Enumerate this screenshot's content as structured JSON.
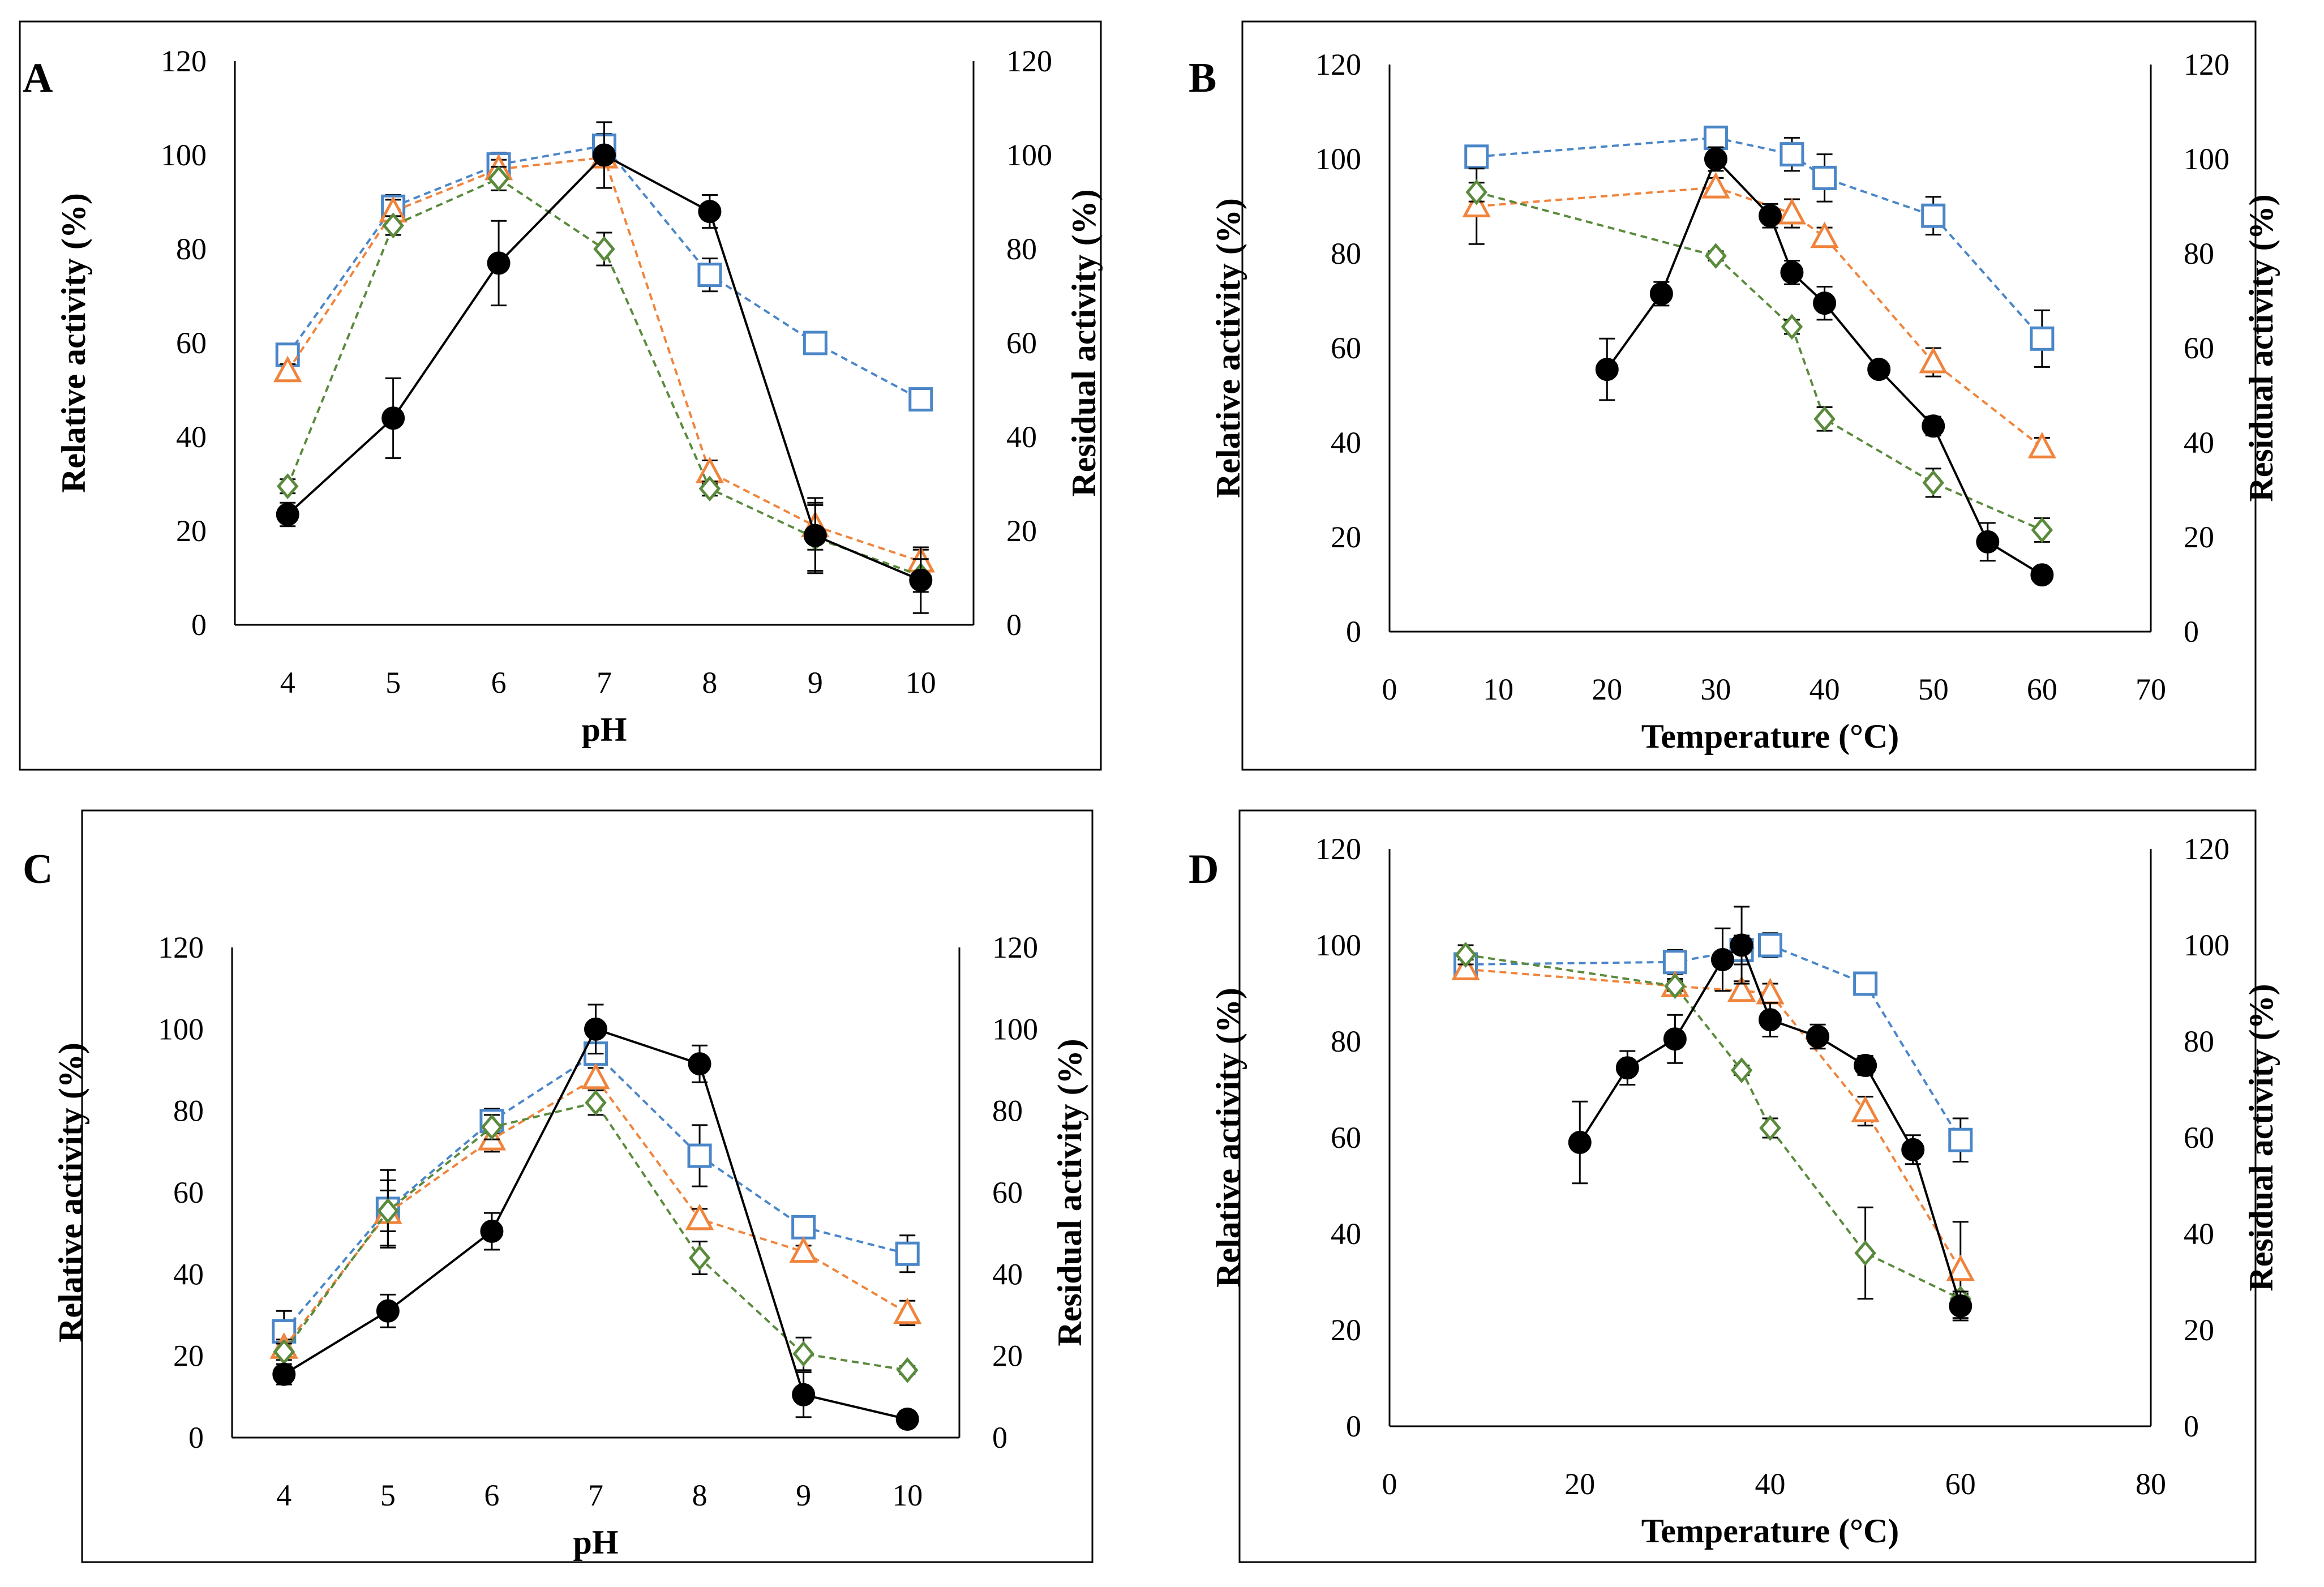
{
  "figure": {
    "marker_colors": {
      "filled_circle": "#000000",
      "square": "#4a86c8",
      "triangle": "#f0843c",
      "diamond": "#5a8a3c"
    }
  },
  "chart_data": [
    {
      "panel": "A",
      "type": "line",
      "xlabel": "pH",
      "ylabel": "Relative activity (%)",
      "y2label": "Residual activity (%)",
      "xlim": [
        3.5,
        10.5
      ],
      "ylim": [
        0,
        120
      ],
      "y2lim": [
        0,
        120
      ],
      "x_ticks": [
        4,
        5,
        6,
        7,
        8,
        9,
        10
      ],
      "y_ticks": [
        0,
        20,
        40,
        60,
        80,
        100,
        120
      ],
      "y2_ticks": [
        0,
        20,
        40,
        60,
        80,
        100,
        120
      ],
      "series": [
        {
          "name": "Relative activity",
          "marker": "filled_circle",
          "color": "#000000",
          "style": "solid",
          "axis": "left",
          "x": [
            4,
            5,
            6,
            7,
            8,
            9,
            10
          ],
          "y": [
            23.5,
            44,
            77,
            100,
            88,
            19,
            9.5
          ],
          "err": [
            2.5,
            8.5,
            9,
            7,
            3.5,
            8,
            7
          ]
        },
        {
          "name": "Residual activity (square)",
          "marker": "square",
          "color": "#4a86c8",
          "style": "dashed",
          "axis": "right",
          "x": [
            4,
            5,
            6,
            7,
            8,
            9,
            10
          ],
          "y": [
            57.5,
            89,
            98,
            102,
            74.5,
            60,
            48
          ],
          "err": [
            1.5,
            2.5,
            2.5,
            2.5,
            3.5,
            1,
            1
          ]
        },
        {
          "name": "Residual activity (triangle)",
          "marker": "triangle",
          "color": "#f0843c",
          "style": "dashed",
          "axis": "right",
          "x": [
            4,
            5,
            6,
            7,
            8,
            9,
            10
          ],
          "y": [
            54,
            88,
            97,
            99.5,
            32.5,
            21,
            13.5
          ],
          "err": [
            1.5,
            2.5,
            2,
            2,
            2.5,
            5,
            2.5
          ]
        },
        {
          "name": "Residual activity (diamond)",
          "marker": "diamond",
          "color": "#5a8a3c",
          "style": "dashed",
          "axis": "right",
          "x": [
            4,
            5,
            6,
            7,
            8,
            9,
            10
          ],
          "y": [
            29.5,
            85,
            95,
            80,
            29,
            18.5,
            10.5
          ],
          "err": [
            1.5,
            2,
            2.5,
            3.5,
            1.5,
            7,
            3.5
          ]
        }
      ]
    },
    {
      "panel": "B",
      "type": "line",
      "xlabel": "Temperature (°C)",
      "ylabel": "Relative activity (%)",
      "y2label": "Residual activity (%)",
      "xlim": [
        0,
        70
      ],
      "ylim": [
        0,
        120
      ],
      "y2lim": [
        0,
        120
      ],
      "x_ticks": [
        0,
        10,
        20,
        30,
        40,
        50,
        60,
        70
      ],
      "y_ticks": [
        0,
        20,
        40,
        60,
        80,
        100,
        120
      ],
      "y2_ticks": [
        0,
        20,
        40,
        60,
        80,
        100,
        120
      ],
      "series": [
        {
          "name": "Relative activity",
          "marker": "filled_circle",
          "color": "#000000",
          "style": "solid",
          "axis": "left",
          "x": [
            20,
            25,
            30,
            35,
            37,
            40,
            45,
            50,
            55,
            60
          ],
          "y": [
            55.5,
            71.5,
            100,
            88,
            76,
            69.5,
            55.5,
            43.5,
            19,
            12
          ],
          "err": [
            6.5,
            2.5,
            2.5,
            2.5,
            2.5,
            3.5,
            1.5,
            2,
            4,
            1.5
          ]
        },
        {
          "name": "Residual activity (square)",
          "marker": "square",
          "color": "#4a86c8",
          "style": "dashed",
          "axis": "right",
          "x": [
            8,
            30,
            37,
            40,
            50,
            60
          ],
          "y": [
            100.5,
            104.5,
            101,
            96,
            88,
            62
          ],
          "err": [
            2,
            2,
            3.5,
            5,
            4,
            6
          ]
        },
        {
          "name": "Residual activity (triangle)",
          "marker": "triangle",
          "color": "#f0843c",
          "style": "dashed",
          "axis": "right",
          "x": [
            8,
            30,
            37,
            40,
            50,
            60
          ],
          "y": [
            90,
            94,
            88.5,
            83.5,
            57,
            39
          ],
          "err": [
            8,
            2,
            3,
            2,
            3,
            2
          ]
        },
        {
          "name": "Residual activity (diamond)",
          "marker": "diamond",
          "color": "#5a8a3c",
          "style": "dashed",
          "axis": "right",
          "x": [
            8,
            30,
            37,
            40,
            50,
            60
          ],
          "y": [
            93,
            79.5,
            64.5,
            45,
            31.5,
            21.5
          ],
          "err": [
            2,
            1,
            1.5,
            2.5,
            3,
            2.5
          ]
        }
      ]
    },
    {
      "panel": "C",
      "type": "line",
      "xlabel": "pH",
      "ylabel": "Relative activity (%)",
      "y2label": "Residual activity (%)",
      "xlim": [
        3.5,
        10.5
      ],
      "ylim": [
        0,
        120
      ],
      "y2lim": [
        0,
        120
      ],
      "x_ticks": [
        4,
        5,
        6,
        7,
        8,
        9,
        10
      ],
      "y_ticks": [
        0,
        20,
        40,
        60,
        80,
        100,
        120
      ],
      "y2_ticks": [
        0,
        20,
        40,
        60,
        80,
        100,
        120
      ],
      "series": [
        {
          "name": "Relative activity",
          "marker": "filled_circle",
          "color": "#000000",
          "style": "solid",
          "axis": "left",
          "x": [
            4,
            5,
            6,
            7,
            8,
            9,
            10
          ],
          "y": [
            15.5,
            31,
            50.5,
            100,
            91.5,
            10.5,
            4.5
          ],
          "err": [
            2.5,
            4,
            4.5,
            6,
            4.5,
            5.5,
            2
          ]
        },
        {
          "name": "Residual activity (square)",
          "marker": "square",
          "color": "#4a86c8",
          "style": "dashed",
          "axis": "right",
          "x": [
            4,
            5,
            6,
            7,
            8,
            9,
            10
          ],
          "y": [
            26,
            56,
            77.5,
            94,
            69,
            51.5,
            45
          ],
          "err": [
            5,
            9.5,
            3,
            2.5,
            7.5,
            2,
            4.5
          ]
        },
        {
          "name": "Residual activity (triangle)",
          "marker": "triangle",
          "color": "#f0843c",
          "style": "dashed",
          "axis": "right",
          "x": [
            4,
            5,
            6,
            7,
            8,
            9,
            10
          ],
          "y": [
            22,
            55,
            73,
            88,
            53.5,
            45.5,
            30.5
          ],
          "err": [
            2,
            8,
            3,
            2.5,
            2.5,
            1.5,
            3
          ]
        },
        {
          "name": "Residual activity (diamond)",
          "marker": "diamond",
          "color": "#5a8a3c",
          "style": "dashed",
          "axis": "right",
          "x": [
            4,
            5,
            6,
            7,
            8,
            9,
            10
          ],
          "y": [
            21,
            55.5,
            76,
            82,
            44,
            20.5,
            16.5
          ],
          "err": [
            2,
            5,
            3,
            3,
            4,
            4,
            1
          ]
        }
      ]
    },
    {
      "panel": "D",
      "type": "line",
      "xlabel": "Temperature (°C)",
      "ylabel": "Relative activity (%)",
      "y2label": "Residual activity (%)",
      "xlim": [
        0,
        80
      ],
      "ylim": [
        0,
        120
      ],
      "y2lim": [
        0,
        120
      ],
      "x_ticks": [
        0,
        20,
        40,
        60,
        80
      ],
      "y_ticks": [
        0,
        20,
        40,
        60,
        80,
        100,
        120
      ],
      "y2_ticks": [
        0,
        20,
        40,
        60,
        80,
        100,
        120
      ],
      "series": [
        {
          "name": "Relative activity",
          "marker": "filled_circle",
          "color": "#000000",
          "style": "solid",
          "axis": "left",
          "x": [
            20,
            25,
            30,
            35,
            37,
            40,
            45,
            50,
            55,
            60
          ],
          "y": [
            59,
            74.5,
            80.5,
            97,
            100,
            84.5,
            81,
            75,
            57.5,
            25
          ],
          "err": [
            8.5,
            3.5,
            5,
            6.5,
            8,
            3.5,
            2.5,
            2,
            3,
            3
          ]
        },
        {
          "name": "Residual activity (square)",
          "marker": "square",
          "color": "#4a86c8",
          "style": "dashed",
          "axis": "right",
          "x": [
            8,
            30,
            37,
            40,
            50,
            60
          ],
          "y": [
            96,
            96.5,
            99,
            100,
            92,
            59.5
          ],
          "err": [
            2.5,
            2.5,
            3,
            2.5,
            1,
            4.5
          ]
        },
        {
          "name": "Residual activity (triangle)",
          "marker": "triangle",
          "color": "#f0843c",
          "style": "dashed",
          "axis": "right",
          "x": [
            8,
            30,
            37,
            40,
            50,
            60
          ],
          "y": [
            95,
            91.5,
            90.5,
            90,
            65.5,
            32.5
          ],
          "err": [
            2,
            1.5,
            2,
            2,
            3,
            10
          ]
        },
        {
          "name": "Residual activity (diamond)",
          "marker": "diamond",
          "color": "#5a8a3c",
          "style": "dashed",
          "axis": "right",
          "x": [
            8,
            30,
            37,
            40,
            50,
            60
          ],
          "y": [
            98,
            91.5,
            74,
            62,
            36,
            26.5
          ],
          "err": [
            2,
            1,
            1,
            2,
            9.5,
            1
          ]
        }
      ]
    }
  ]
}
